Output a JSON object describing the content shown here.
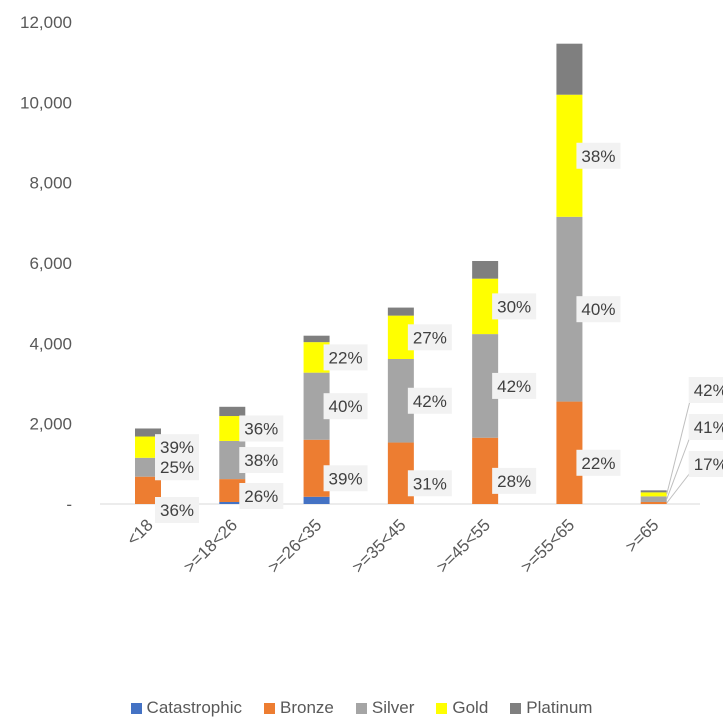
{
  "chart_data": {
    "type": "bar",
    "stacked": true,
    "title": "",
    "xlabel": "",
    "ylabel": "",
    "ylim": [
      0,
      12000
    ],
    "y_ticks": [
      {
        "value": 0,
        "label": "-"
      },
      {
        "value": 2000,
        "label": "2,000"
      },
      {
        "value": 4000,
        "label": "4,000"
      },
      {
        "value": 6000,
        "label": "6,000"
      },
      {
        "value": 8000,
        "label": "8,000"
      },
      {
        "value": 10000,
        "label": "10,000"
      },
      {
        "value": 12000,
        "label": "12,000"
      }
    ],
    "grid": false,
    "legend_position": "bottom",
    "categories": [
      "<18",
      ">=18<26",
      ">=26<35",
      ">=35<45",
      ">=45<55",
      ">=55<65",
      ">=65"
    ],
    "series": [
      {
        "name": "Catastrophic",
        "color": "#4472C4",
        "values": [
          0,
          50,
          180,
          0,
          0,
          0,
          0
        ]
      },
      {
        "name": "Bronze",
        "color": "#ED7D31",
        "values": [
          680,
          570,
          1420,
          1530,
          1650,
          2550,
          50
        ]
      },
      {
        "name": "Silver",
        "color": "#A5A5A5",
        "values": [
          470,
          950,
          1670,
          2080,
          2580,
          4600,
          140
        ]
      },
      {
        "name": "Gold",
        "color": "#FFFF00",
        "values": [
          530,
          620,
          760,
          1080,
          1380,
          3040,
          100
        ]
      },
      {
        "name": "Platinum",
        "color": "#7F7F7F",
        "values": [
          200,
          230,
          160,
          200,
          440,
          1270,
          50
        ]
      }
    ],
    "data_labels": [
      [
        "",
        "36%",
        "25%",
        "39%",
        ""
      ],
      [
        "",
        "26%",
        "38%",
        "36%",
        ""
      ],
      [
        "",
        "39%",
        "40%",
        "22%",
        ""
      ],
      [
        "",
        "31%",
        "42%",
        "27%",
        ""
      ],
      [
        "",
        "28%",
        "42%",
        "30%",
        ""
      ],
      [
        "",
        "22%",
        "40%",
        "38%",
        ""
      ],
      [
        "",
        "17%",
        "41%",
        "42%",
        ""
      ]
    ]
  }
}
